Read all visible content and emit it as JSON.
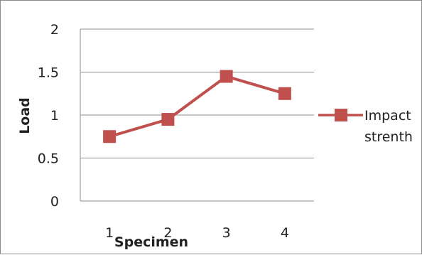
{
  "chart_data": {
    "type": "line",
    "categories": [
      "1",
      "2",
      "3",
      "4"
    ],
    "series": [
      {
        "name": "Impact strenth",
        "values": [
          0.75,
          0.95,
          1.45,
          1.25
        ]
      }
    ],
    "xlabel": "Specimen",
    "ylabel": "Load",
    "ylim": [
      0,
      2
    ],
    "yticks": [
      "0",
      "0.5",
      "1",
      "1.5",
      "2"
    ],
    "grid": true,
    "legend": {
      "placement": "right",
      "lines": [
        "Impact",
        "strenth"
      ]
    },
    "colors": {
      "series": "#c0504d",
      "grid": "#8c8c8c",
      "frame": "#8c8c8c"
    }
  }
}
